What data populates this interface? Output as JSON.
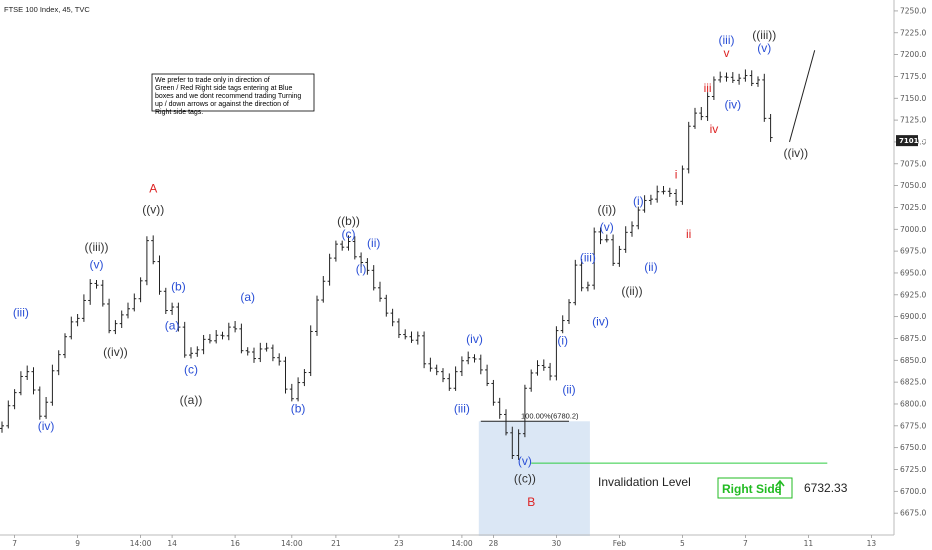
{
  "chart_data": {
    "type": "ohlc",
    "title": "FTSE 100 Index, 45, TVC",
    "y_axis": {
      "min": 6650,
      "max": 7260,
      "ticks": [
        6675,
        6700,
        6725,
        6750,
        6775,
        6800,
        6825,
        6850,
        6875,
        6900,
        6925,
        6950,
        6975,
        7000,
        7025,
        7050,
        7075,
        7100,
        7125,
        7150,
        7175,
        7200,
        7225,
        7250
      ],
      "tick_labels": [
        "6675.0",
        "6700.0",
        "6725.0",
        "6750.0",
        "6775.0",
        "6800.0",
        "6825.0",
        "6850.0",
        "6875.0",
        "6900.0",
        "6925.0",
        "6950.0",
        "6975.0",
        "7000.0",
        "7025.0",
        "7050.0",
        "7075.0",
        "7100.0",
        "7125.0",
        "7150.0",
        "7175.0",
        "7200.0",
        "7225.0",
        "7250.0"
      ],
      "current_price_label": "7101.5",
      "current_price": 7101.5
    },
    "x_axis": {
      "labels": [
        {
          "i": 2,
          "text": "7"
        },
        {
          "i": 12,
          "text": "9"
        },
        {
          "i": 22,
          "text": "14:00"
        },
        {
          "i": 27,
          "text": "14"
        },
        {
          "i": 37,
          "text": "16"
        },
        {
          "i": 46,
          "text": "14:00"
        },
        {
          "i": 53,
          "text": "21"
        },
        {
          "i": 63,
          "text": "23"
        },
        {
          "i": 73,
          "text": "14:00"
        },
        {
          "i": 78,
          "text": "28"
        },
        {
          "i": 88,
          "text": "30"
        },
        {
          "i": 98,
          "text": "Feb"
        },
        {
          "i": 108,
          "text": "5"
        },
        {
          "i": 118,
          "text": "7"
        },
        {
          "i": 128,
          "text": "11"
        },
        {
          "i": 138,
          "text": "13"
        }
      ]
    },
    "series": [
      {
        "anchors": [
          [
            0,
            6775
          ],
          [
            2,
            6815
          ],
          [
            4,
            6840
          ],
          [
            6,
            6790
          ],
          [
            7,
            6800
          ],
          [
            8,
            6835
          ],
          [
            10,
            6880
          ],
          [
            12,
            6900
          ],
          [
            14,
            6935
          ],
          [
            15,
            6940
          ],
          [
            17,
            6885
          ],
          [
            18,
            6895
          ],
          [
            20,
            6905
          ],
          [
            22,
            6940
          ],
          [
            23,
            6990
          ],
          [
            24,
            6960
          ],
          [
            25,
            6930
          ],
          [
            26,
            6905
          ],
          [
            27,
            6915
          ],
          [
            28,
            6885
          ],
          [
            29,
            6855
          ],
          [
            32,
            6870
          ],
          [
            35,
            6880
          ],
          [
            37,
            6890
          ],
          [
            38,
            6860
          ],
          [
            40,
            6855
          ],
          [
            42,
            6865
          ],
          [
            44,
            6845
          ],
          [
            45,
            6820
          ],
          [
            46,
            6805
          ],
          [
            48,
            6840
          ],
          [
            50,
            6920
          ],
          [
            52,
            6965
          ],
          [
            53,
            6980
          ],
          [
            55,
            6985
          ],
          [
            57,
            6960
          ],
          [
            58,
            6950
          ],
          [
            60,
            6920
          ],
          [
            62,
            6890
          ],
          [
            64,
            6875
          ],
          [
            66,
            6875
          ],
          [
            67,
            6850
          ],
          [
            68,
            6840
          ],
          [
            70,
            6830
          ],
          [
            71,
            6815
          ],
          [
            72,
            6840
          ],
          [
            74,
            6855
          ],
          [
            76,
            6840
          ],
          [
            78,
            6805
          ],
          [
            80,
            6765
          ],
          [
            81,
            6745
          ],
          [
            82,
            6765
          ],
          [
            83,
            6820
          ],
          [
            85,
            6845
          ],
          [
            86,
            6840
          ],
          [
            87,
            6835
          ],
          [
            88,
            6880
          ],
          [
            90,
            6915
          ],
          [
            91,
            6960
          ],
          [
            92,
            6930
          ],
          [
            93,
            6940
          ],
          [
            94,
            6995
          ],
          [
            96,
            6985
          ],
          [
            97,
            6960
          ],
          [
            98,
            6980
          ],
          [
            100,
            7005
          ],
          [
            102,
            7035
          ],
          [
            104,
            7040
          ],
          [
            106,
            7045
          ],
          [
            107,
            7030
          ],
          [
            108,
            7070
          ],
          [
            109,
            7115
          ],
          [
            110,
            7135
          ],
          [
            111,
            7125
          ],
          [
            112,
            7155
          ],
          [
            113,
            7170
          ],
          [
            115,
            7175
          ],
          [
            117,
            7170
          ],
          [
            118,
            7180
          ],
          [
            119,
            7165
          ],
          [
            120,
            7170
          ],
          [
            121,
            7130
          ],
          [
            122,
            7105
          ]
        ],
        "noise": [
          0,
          3,
          -2,
          4,
          -3,
          1,
          -4,
          2,
          3,
          -1,
          -3,
          4,
          -2,
          1,
          3,
          -4,
          2,
          -1,
          -3,
          2,
          4,
          -2,
          1,
          -3,
          3,
          -1,
          2,
          -4,
          3,
          1,
          -2,
          -3,
          4,
          -1,
          2,
          -2,
          3,
          -4,
          1,
          2,
          -3,
          3,
          -1,
          -2,
          4,
          -3,
          1,
          2,
          -4,
          3,
          -1,
          -2,
          2,
          3,
          -3,
          1,
          -4,
          2,
          3,
          -2,
          1,
          -1,
          4,
          -3,
          2,
          -2,
          3,
          -4,
          1,
          2,
          -1,
          3,
          -3,
          2,
          -2,
          4,
          -1,
          1,
          -3,
          3,
          2,
          -4,
          1,
          -2,
          3,
          -1,
          2,
          -3,
          4,
          -2,
          1,
          -1,
          3,
          -4,
          2,
          -2,
          3,
          1,
          -3,
          4,
          -1,
          2,
          -2,
          -3,
          3,
          1,
          -4,
          2,
          -1,
          3,
          -2,
          4,
          -3,
          1,
          2,
          -1,
          -2,
          3,
          -4,
          2,
          1,
          -3
        ]
      }
    ],
    "wave_labels": [
      {
        "text": "(iii)",
        "i": 3,
        "price": 6900,
        "color": "#2a4fd6"
      },
      {
        "text": "(iv)",
        "i": 7,
        "price": 6770,
        "color": "#2a4fd6"
      },
      {
        "text": "(v)",
        "i": 15,
        "price": 6955,
        "color": "#2a4fd6"
      },
      {
        "text": "((iii))",
        "i": 15,
        "price": 6975,
        "color": "#333333"
      },
      {
        "text": "((iv))",
        "i": 18,
        "price": 6855,
        "color": "#333333"
      },
      {
        "text": "A",
        "i": 24,
        "price": 7042,
        "color": "#dd2222"
      },
      {
        "text": "((v))",
        "i": 24,
        "price": 7018,
        "color": "#333333"
      },
      {
        "text": "(b)",
        "i": 28,
        "price": 6930,
        "color": "#2a4fd6"
      },
      {
        "text": "(a)",
        "i": 27,
        "price": 6885,
        "color": "#2a4fd6"
      },
      {
        "text": "(c)",
        "i": 30,
        "price": 6835,
        "color": "#2a4fd6"
      },
      {
        "text": "((a))",
        "i": 30,
        "price": 6800,
        "color": "#333333"
      },
      {
        "text": "(a)",
        "i": 39,
        "price": 6918,
        "color": "#2a4fd6"
      },
      {
        "text": "(b)",
        "i": 47,
        "price": 6790,
        "color": "#2a4fd6"
      },
      {
        "text": "((b))",
        "i": 55,
        "price": 7005,
        "color": "#333333"
      },
      {
        "text": "(c)",
        "i": 55,
        "price": 6990,
        "color": "#2a4fd6"
      },
      {
        "text": "(ii)",
        "i": 59,
        "price": 6980,
        "color": "#2a4fd6"
      },
      {
        "text": "(i)",
        "i": 57,
        "price": 6950,
        "color": "#2a4fd6"
      },
      {
        "text": "(iv)",
        "i": 75,
        "price": 6870,
        "color": "#2a4fd6"
      },
      {
        "text": "(iii)",
        "i": 73,
        "price": 6790,
        "color": "#2a4fd6"
      },
      {
        "text": "(v)",
        "i": 83,
        "price": 6730,
        "color": "#2a4fd6"
      },
      {
        "text": "((c))",
        "i": 83,
        "price": 6710,
        "color": "#333333"
      },
      {
        "text": "B",
        "i": 84,
        "price": 6683,
        "color": "#dd2222"
      },
      {
        "text": "(i)",
        "i": 89,
        "price": 6868,
        "color": "#2a4fd6"
      },
      {
        "text": "(ii)",
        "i": 90,
        "price": 6812,
        "color": "#2a4fd6"
      },
      {
        "text": "(iii)",
        "i": 93,
        "price": 6963,
        "color": "#2a4fd6"
      },
      {
        "text": "(iv)",
        "i": 95,
        "price": 6890,
        "color": "#2a4fd6"
      },
      {
        "text": "(v)",
        "i": 96,
        "price": 6998,
        "color": "#2a4fd6"
      },
      {
        "text": "((i))",
        "i": 96,
        "price": 7018,
        "color": "#333333"
      },
      {
        "text": "((ii))",
        "i": 100,
        "price": 6925,
        "color": "#333333"
      },
      {
        "text": "(i)",
        "i": 101,
        "price": 7028,
        "color": "#2a4fd6"
      },
      {
        "text": "(ii)",
        "i": 103,
        "price": 6952,
        "color": "#2a4fd6"
      },
      {
        "text": "i",
        "i": 107,
        "price": 7058,
        "color": "#dd2222"
      },
      {
        "text": "ii",
        "i": 109,
        "price": 6990,
        "color": "#dd2222"
      },
      {
        "text": "iii",
        "i": 112,
        "price": 7157,
        "color": "#dd2222"
      },
      {
        "text": "iv",
        "i": 113,
        "price": 7110,
        "color": "#dd2222"
      },
      {
        "text": "(iii)",
        "i": 115,
        "price": 7212,
        "color": "#2a4fd6"
      },
      {
        "text": "v",
        "i": 115,
        "price": 7197,
        "color": "#dd2222"
      },
      {
        "text": "(iv)",
        "i": 116,
        "price": 7138,
        "color": "#2a4fd6"
      },
      {
        "text": "((iii))",
        "i": 121,
        "price": 7218,
        "color": "#333333"
      },
      {
        "text": "(v)",
        "i": 121,
        "price": 7203,
        "color": "#2a4fd6"
      },
      {
        "text": "((iv))",
        "i": 126,
        "price": 7083,
        "color": "#333333"
      }
    ],
    "fib_level": {
      "label": "100.00%(6780.2)",
      "price": 6780.2,
      "i_start": 76,
      "i_end": 90
    },
    "blue_box": {
      "price_top": 6780.2,
      "price_bottom": 6650,
      "i_start": 76,
      "i_end": 93
    },
    "invalidation": {
      "label": "Invalidation Level",
      "price": 6732.33,
      "value_label": "6732.33",
      "i_start": 84,
      "i_end": 131
    },
    "projection": {
      "from_i": 125,
      "from_price": 7100,
      "to_i": 129,
      "to_price": 7205
    },
    "note": "We prefer to trade only in direction of Green / Red Right side tags entering at Blue boxes and we dont recommend trading Turning up / down arrows or against the direction of Right side tags.",
    "right_side_badge": {
      "label": "Right Side",
      "arrow": "up-arrow-icon"
    }
  },
  "colors": {
    "bar": "#222222",
    "blue_box": "#dbe7f5",
    "invalidation_line": "#2ecc40",
    "price_tag": "#222222",
    "badge_border": "#22bb22",
    "badge_text": "#22bb22",
    "wave_blue": "#2a4fd6",
    "wave_black": "#333333",
    "wave_red": "#dd2222"
  }
}
